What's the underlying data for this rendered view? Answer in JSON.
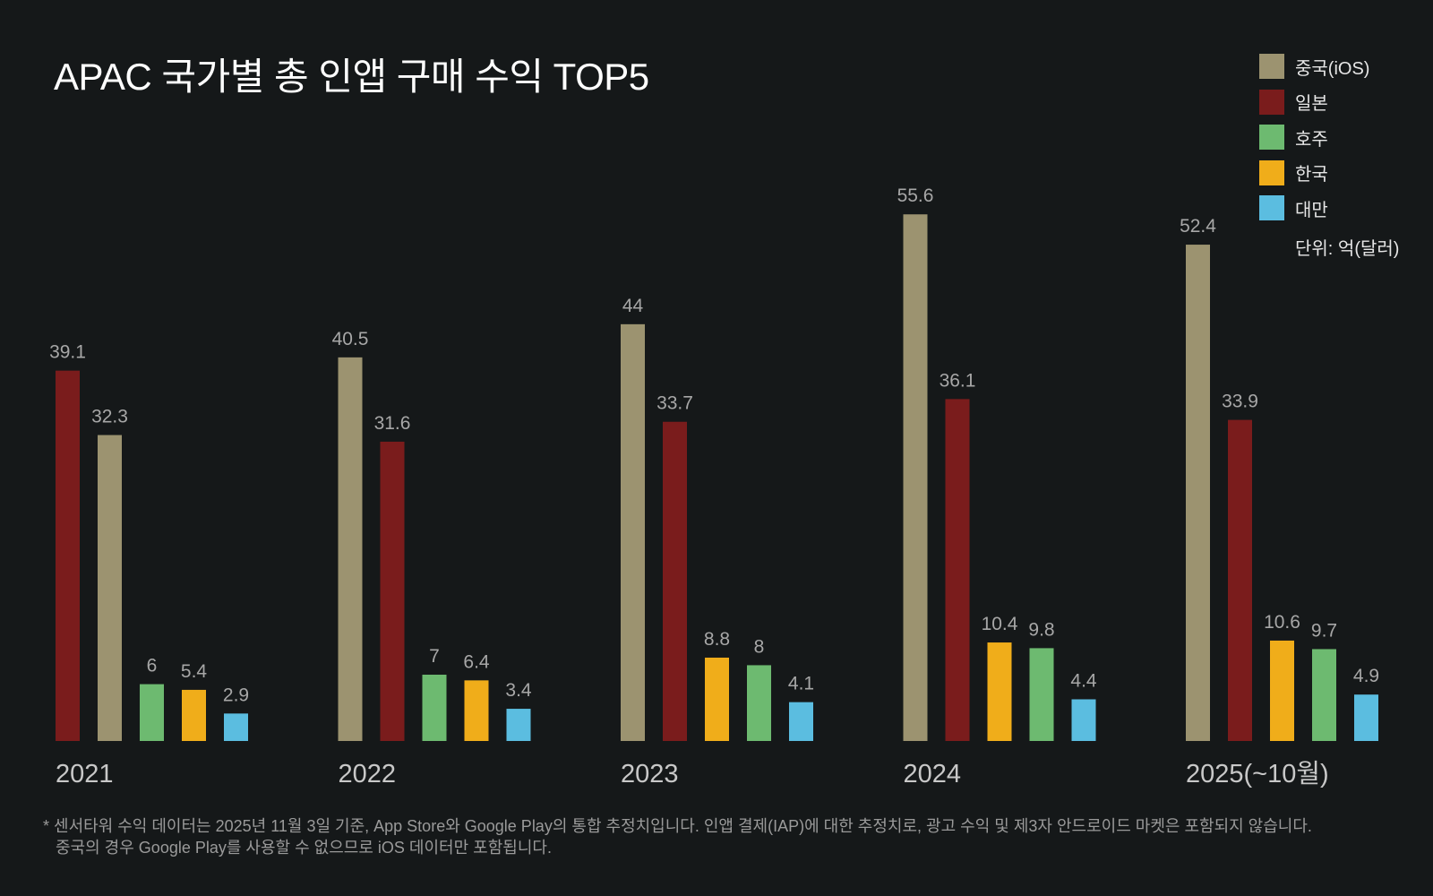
{
  "chart_data": {
    "type": "bar",
    "title": "APAC 국가별 총 인앱 구매 수익 TOP5",
    "unit": "단위: 억(달러)",
    "categories": [
      "2021",
      "2022",
      "2023",
      "2024",
      "2025(~10월)"
    ],
    "series": [
      {
        "name": "중국(iOS)",
        "color": "#9c9370"
      },
      {
        "name": "일본",
        "color": "#7a1c1c"
      },
      {
        "name": "호주",
        "color": "#6dba70"
      },
      {
        "name": "한국",
        "color": "#f0ad1a"
      },
      {
        "name": "대만",
        "color": "#5bbde0"
      }
    ],
    "groups": [
      {
        "category": "2021",
        "bars": [
          {
            "series": "일본",
            "value": 39.1,
            "label": "39.1"
          },
          {
            "series": "중국(iOS)",
            "value": 32.3,
            "label": "32.3"
          },
          {
            "series": "호주",
            "value": 6,
            "label": "6"
          },
          {
            "series": "한국",
            "value": 5.4,
            "label": "5.4"
          },
          {
            "series": "대만",
            "value": 2.9,
            "label": "2.9"
          }
        ]
      },
      {
        "category": "2022",
        "bars": [
          {
            "series": "중국(iOS)",
            "value": 40.5,
            "label": "40.5"
          },
          {
            "series": "일본",
            "value": 31.6,
            "label": "31.6"
          },
          {
            "series": "호주",
            "value": 7,
            "label": "7"
          },
          {
            "series": "한국",
            "value": 6.4,
            "label": "6.4"
          },
          {
            "series": "대만",
            "value": 3.4,
            "label": "3.4"
          }
        ]
      },
      {
        "category": "2023",
        "bars": [
          {
            "series": "중국(iOS)",
            "value": 44,
            "label": "44"
          },
          {
            "series": "일본",
            "value": 33.7,
            "label": "33.7"
          },
          {
            "series": "한국",
            "value": 8.8,
            "label": "8.8"
          },
          {
            "series": "호주",
            "value": 8,
            "label": "8"
          },
          {
            "series": "대만",
            "value": 4.1,
            "label": "4.1"
          }
        ]
      },
      {
        "category": "2024",
        "bars": [
          {
            "series": "중국(iOS)",
            "value": 55.6,
            "label": "55.6"
          },
          {
            "series": "일본",
            "value": 36.1,
            "label": "36.1"
          },
          {
            "series": "한국",
            "value": 10.4,
            "label": "10.4"
          },
          {
            "series": "호주",
            "value": 9.8,
            "label": "9.8"
          },
          {
            "series": "대만",
            "value": 4.4,
            "label": "4.4"
          }
        ]
      },
      {
        "category": "2025(~10월)",
        "bars": [
          {
            "series": "중국(iOS)",
            "value": 52.4,
            "label": "52.4"
          },
          {
            "series": "일본",
            "value": 33.9,
            "label": "33.9"
          },
          {
            "series": "한국",
            "value": 10.6,
            "label": "10.6"
          },
          {
            "series": "호주",
            "value": 9.7,
            "label": "9.7"
          },
          {
            "series": "대만",
            "value": 4.9,
            "label": "4.9"
          }
        ]
      }
    ],
    "ylim": [
      0,
      56
    ],
    "grid": false,
    "legend_position": "top-right"
  },
  "footnote": {
    "line1": "* 센서타워 수익 데이터는 2025년 11월 3일 기준, App Store와 Google Play의 통합 추정치입니다. 인앱 결제(IAP)에 대한 추정치로, 광고 수익 및 제3자 안드로이드 마켓은 포함되지 않습니다.",
    "line2": "중국의 경우 Google Play를 사용할 수 없으므로 iOS 데이터만 포함됩니다."
  }
}
